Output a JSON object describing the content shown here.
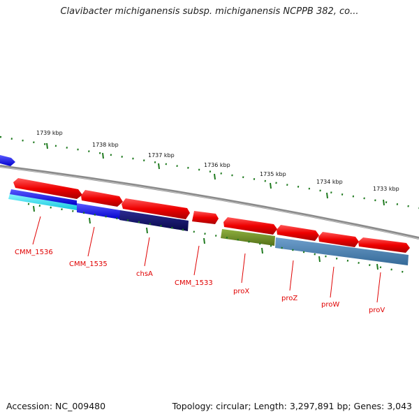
{
  "title": "Clavibacter michiganensis subsp. michiganensis NCPPB 382, co...",
  "accession_text": "Accession: NC_009480",
  "summary_text": "Topology: circular; Length: 3,297,891 bp; Genes: 3,043",
  "ruler_labels": [
    "1739 kbp",
    "1738 kbp",
    "1737 kbp",
    "1736 kbp",
    "1735 kbp",
    "1734 kbp",
    "1733 kbp"
  ],
  "gene_labels": [
    "CMM_1536",
    "CMM_1535",
    "chsA",
    "CMM_1533",
    "proX",
    "proZ",
    "proW",
    "proV"
  ],
  "colors": {
    "forward_gene": "#ee0000",
    "cds_blue": "#1a1aff",
    "cds_cyan": "#33e0ee",
    "cds_navy": "#101070",
    "cds_olive": "#6b8e23",
    "cds_steel": "#4a7fb0",
    "backbone": "#888888",
    "tick": "#1f7a1f"
  }
}
